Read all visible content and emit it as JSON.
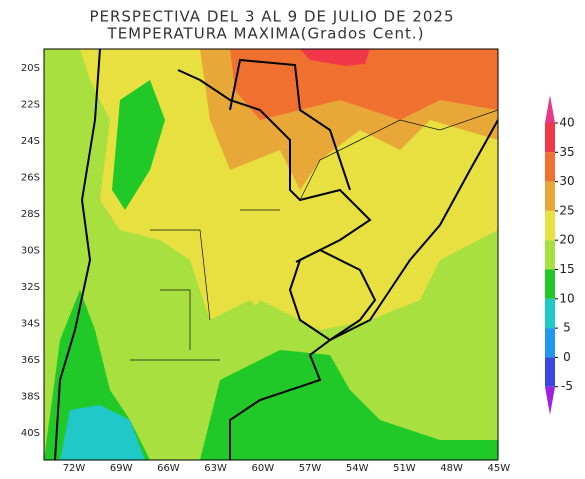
{
  "title": "PERSPECTIVA DEL 3 AL 9 DE JULIO DE 2025",
  "subtitle": "TEMPERATURA MAXIMA(Grados Cent.)",
  "lat_labels": [
    "20S",
    "22S",
    "24S",
    "26S",
    "28S",
    "30S",
    "32S",
    "34S",
    "36S",
    "38S",
    "40S"
  ],
  "lon_labels": [
    "72W",
    "69W",
    "66W",
    "63W",
    "60W",
    "57W",
    "54W",
    "51W",
    "48W",
    "45W"
  ],
  "colorbar": {
    "ticks": [
      40,
      35,
      30,
      25,
      20,
      15,
      10,
      5,
      0,
      -5
    ],
    "colors": [
      "#e8388a",
      "#f03848",
      "#f07030",
      "#e8a838",
      "#e8e040",
      "#a8e040",
      "#20c828",
      "#20c8c8",
      "#2098f0",
      "#3848e0",
      "#a020e0"
    ]
  }
}
